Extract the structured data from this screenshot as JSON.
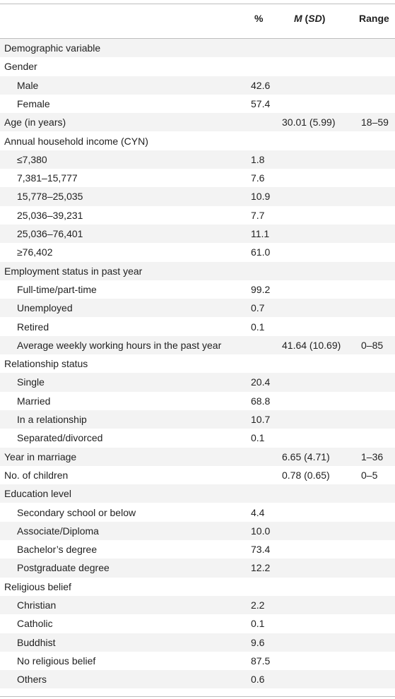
{
  "header": {
    "pct": "%",
    "m_italic": "M",
    "sd_open": " (",
    "sd_italic": "SD",
    "sd_close": ")",
    "range": "Range"
  },
  "rows": [
    {
      "label": "Demographic variable",
      "indent": false,
      "pct": "",
      "msd": "",
      "range": ""
    },
    {
      "label": "Gender",
      "indent": false,
      "pct": "",
      "msd": "",
      "range": ""
    },
    {
      "label": "Male",
      "indent": true,
      "pct": "42.6",
      "msd": "",
      "range": ""
    },
    {
      "label": "Female",
      "indent": true,
      "pct": "57.4",
      "msd": "",
      "range": ""
    },
    {
      "label": "Age (in years)",
      "indent": false,
      "pct": "",
      "msd": "30.01 (5.99)",
      "range": "18–59"
    },
    {
      "label": "Annual household income (CYN)",
      "indent": false,
      "pct": "",
      "msd": "",
      "range": ""
    },
    {
      "label": "≤7,380",
      "indent": true,
      "pct": "1.8",
      "msd": "",
      "range": ""
    },
    {
      "label": "7,381–15,777",
      "indent": true,
      "pct": "7.6",
      "msd": "",
      "range": ""
    },
    {
      "label": "15,778–25,035",
      "indent": true,
      "pct": "10.9",
      "msd": "",
      "range": ""
    },
    {
      "label": "25,036–39,231",
      "indent": true,
      "pct": "7.7",
      "msd": "",
      "range": ""
    },
    {
      "label": "25,036–76,401",
      "indent": true,
      "pct": "11.1",
      "msd": "",
      "range": ""
    },
    {
      "label": "≥76,402",
      "indent": true,
      "pct": "61.0",
      "msd": "",
      "range": ""
    },
    {
      "label": "Employment status in past year",
      "indent": false,
      "pct": "",
      "msd": "",
      "range": ""
    },
    {
      "label": "Full-time/part-time",
      "indent": true,
      "pct": "99.2",
      "msd": "",
      "range": ""
    },
    {
      "label": "Unemployed",
      "indent": true,
      "pct": "0.7",
      "msd": "",
      "range": ""
    },
    {
      "label": "Retired",
      "indent": true,
      "pct": "0.1",
      "msd": "",
      "range": ""
    },
    {
      "label": "Average weekly working hours in the past year",
      "indent": true,
      "pct": "",
      "msd": "41.64 (10.69)",
      "range": "0–85"
    },
    {
      "label": "Relationship status",
      "indent": false,
      "pct": "",
      "msd": "",
      "range": ""
    },
    {
      "label": "Single",
      "indent": true,
      "pct": "20.4",
      "msd": "",
      "range": ""
    },
    {
      "label": "Married",
      "indent": true,
      "pct": "68.8",
      "msd": "",
      "range": ""
    },
    {
      "label": "In a relationship",
      "indent": true,
      "pct": "10.7",
      "msd": "",
      "range": ""
    },
    {
      "label": "Separated/divorced",
      "indent": true,
      "pct": "0.1",
      "msd": "",
      "range": ""
    },
    {
      "label": "Year in marriage",
      "indent": false,
      "pct": "",
      "msd": "6.65 (4.71)",
      "range": "1–36"
    },
    {
      "label": "No. of children",
      "indent": false,
      "pct": "",
      "msd": "0.78 (0.65)",
      "range": "0–5"
    },
    {
      "label": "Education level",
      "indent": false,
      "pct": "",
      "msd": "",
      "range": ""
    },
    {
      "label": "Secondary school or below",
      "indent": true,
      "pct": "4.4",
      "msd": "",
      "range": ""
    },
    {
      "label": "Associate/Diploma",
      "indent": true,
      "pct": "10.0",
      "msd": "",
      "range": ""
    },
    {
      "label": "Bachelor’s degree",
      "indent": true,
      "pct": "73.4",
      "msd": "",
      "range": ""
    },
    {
      "label": "Postgraduate degree",
      "indent": true,
      "pct": "12.2",
      "msd": "",
      "range": ""
    },
    {
      "label": "Religious belief",
      "indent": false,
      "pct": "",
      "msd": "",
      "range": ""
    },
    {
      "label": "Christian",
      "indent": true,
      "pct": "2.2",
      "msd": "",
      "range": ""
    },
    {
      "label": "Catholic",
      "indent": true,
      "pct": "0.1",
      "msd": "",
      "range": ""
    },
    {
      "label": "Buddhist",
      "indent": true,
      "pct": "9.6",
      "msd": "",
      "range": ""
    },
    {
      "label": "No religious belief",
      "indent": true,
      "pct": "87.5",
      "msd": "",
      "range": ""
    },
    {
      "label": "Others",
      "indent": true,
      "pct": "0.6",
      "msd": "",
      "range": ""
    }
  ]
}
